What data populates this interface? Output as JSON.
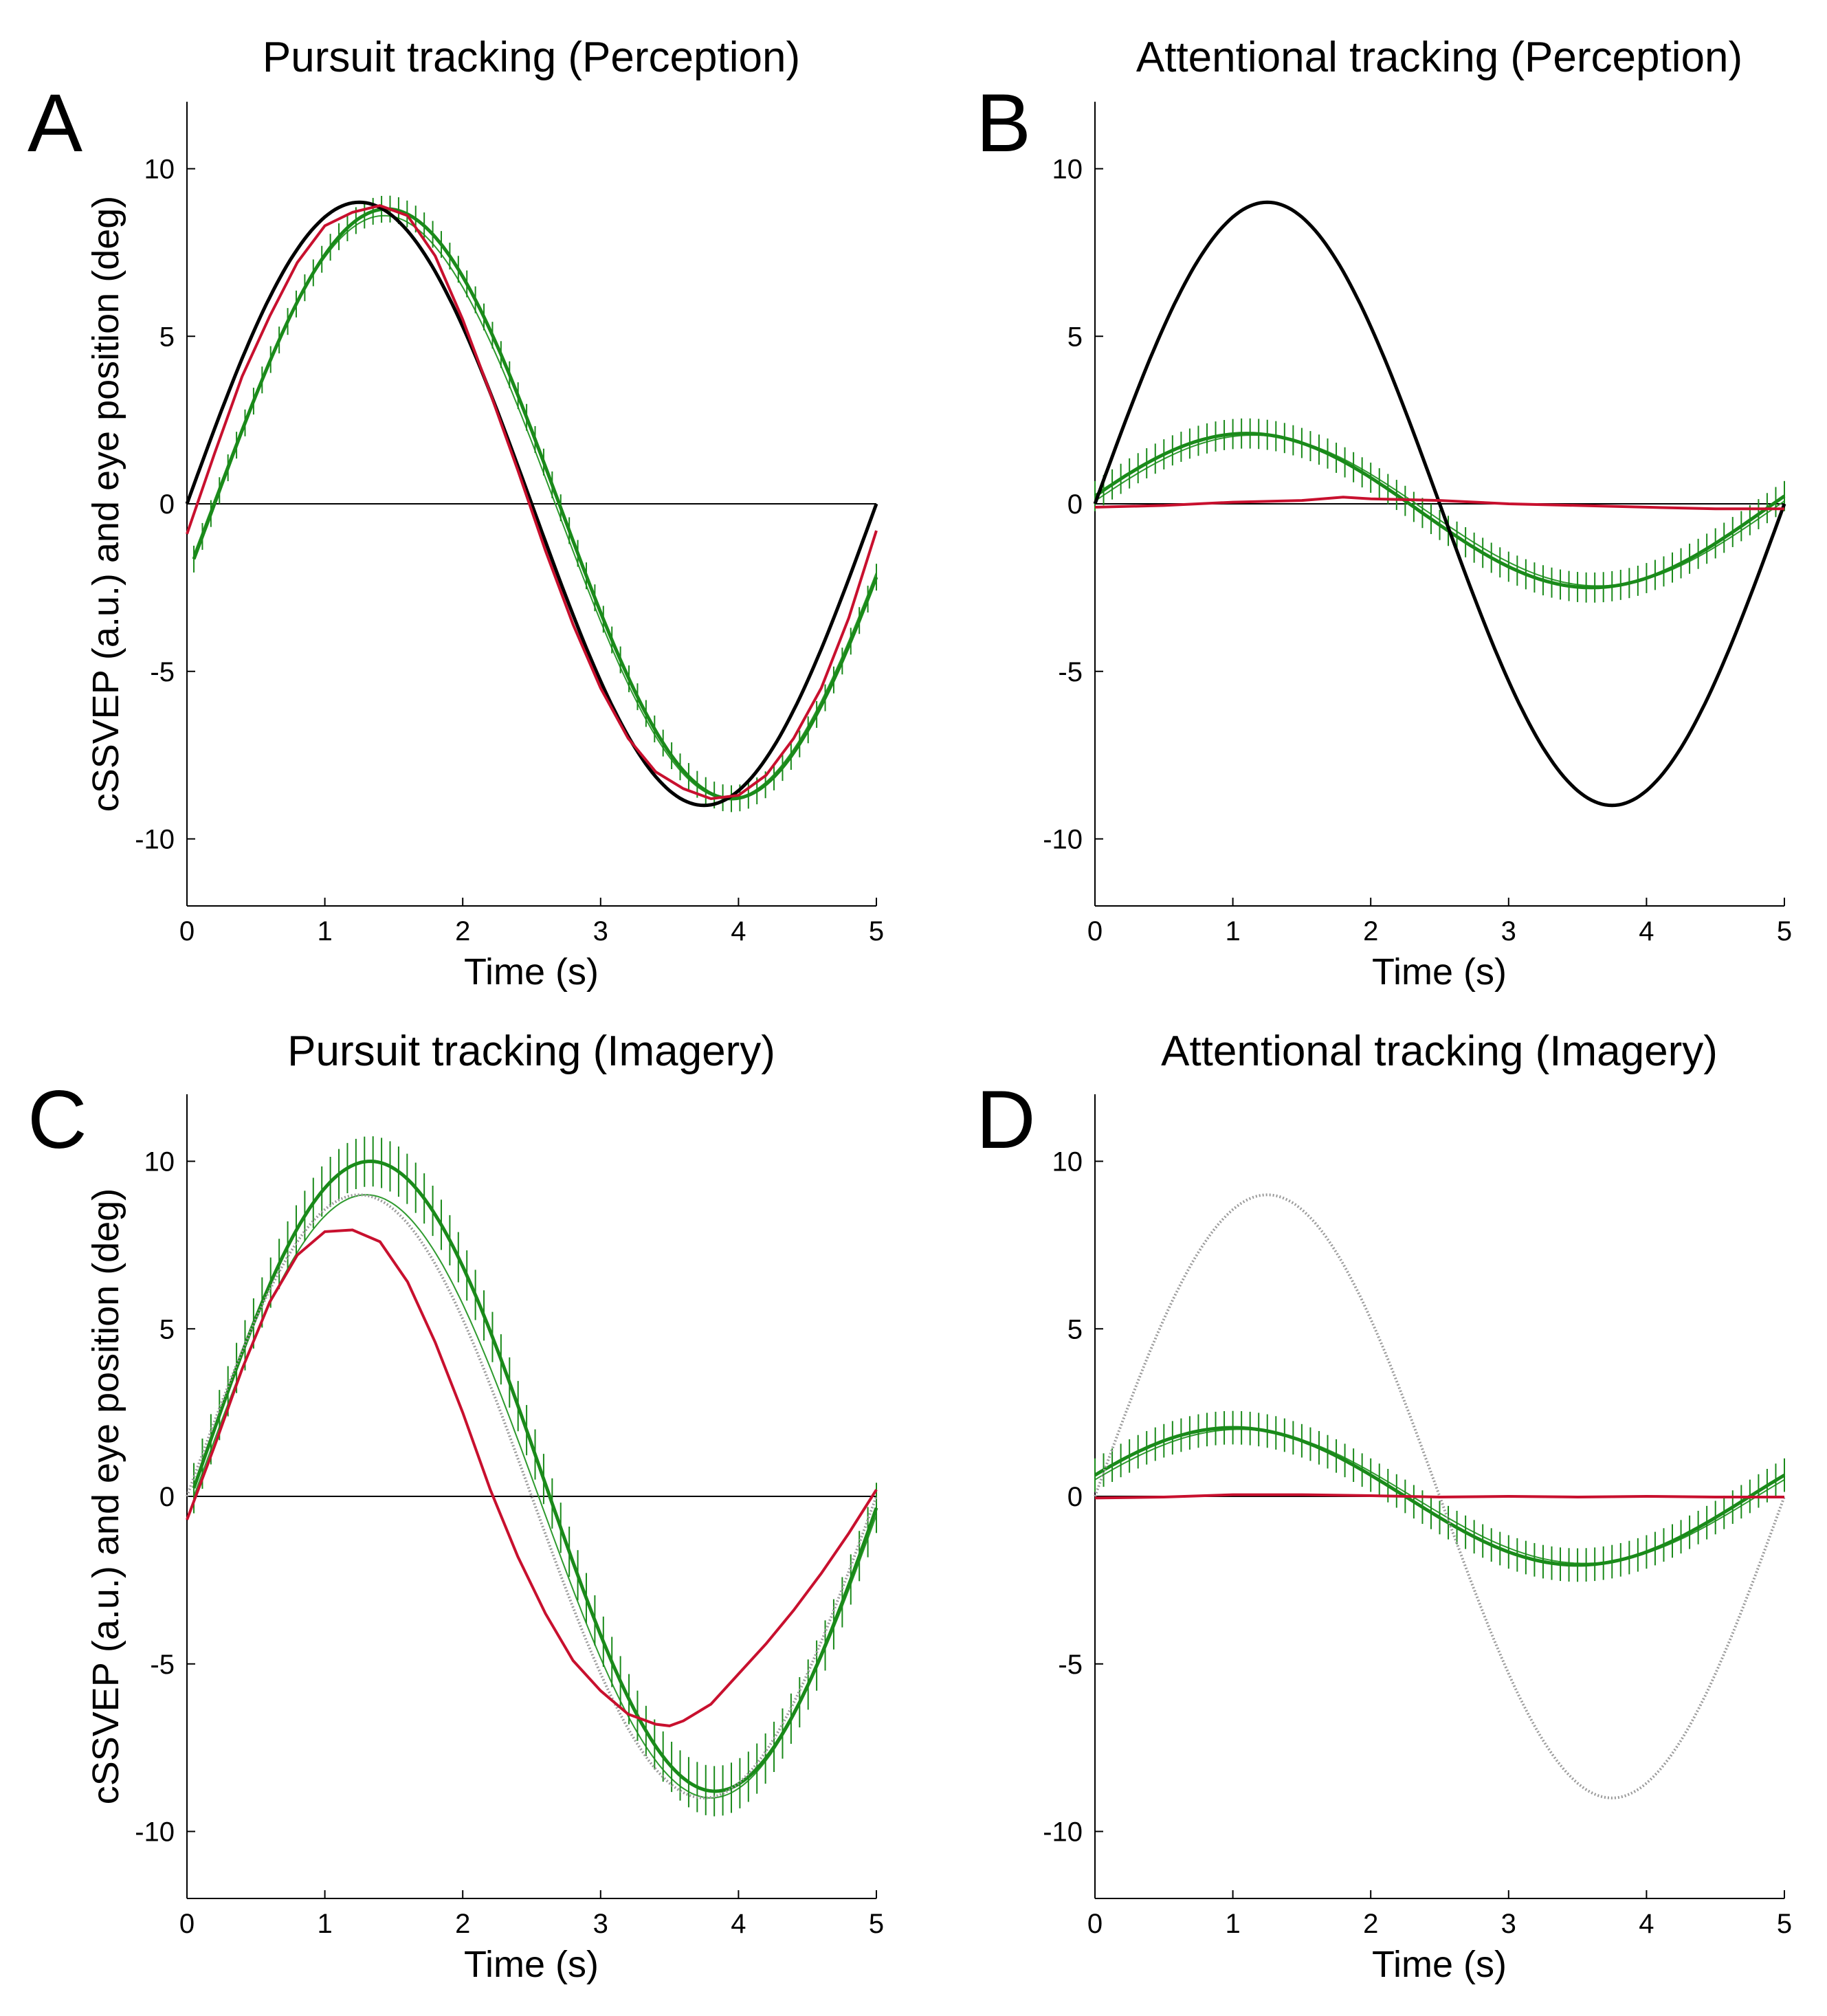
{
  "colors": {
    "target": "#000000",
    "target_dotted": "#9a9a9a",
    "eye": "#c8102e",
    "cssvep": "#1a8a1a",
    "fit": "#2e9a2e",
    "zero_line": "#000000"
  },
  "chart_data": [
    {
      "type": "line",
      "letter": "A",
      "title": "Pursuit tracking (Perception)",
      "xlabel": "Time (s)",
      "ylabel": "cSSVEP (a.u.) and eye position (deg)",
      "xlim": [
        0,
        5
      ],
      "ylim": [
        -12,
        12
      ],
      "x_ticks": [
        0,
        1,
        2,
        3,
        4,
        5
      ],
      "y_ticks": [
        -10,
        -5,
        0,
        5,
        10
      ],
      "grid": false,
      "series": [
        {
          "role": "target",
          "style": "solid",
          "amplitude": 9,
          "period": 5,
          "phase_shift": 0,
          "offset": 0,
          "x_start": 0,
          "x_end": 5
        },
        {
          "role": "eye",
          "style": "solid",
          "points": [
            [
              0,
              -0.9
            ],
            [
              0.2,
              1.5
            ],
            [
              0.4,
              3.8
            ],
            [
              0.6,
              5.6
            ],
            [
              0.8,
              7.2
            ],
            [
              1.0,
              8.3
            ],
            [
              1.2,
              8.7
            ],
            [
              1.4,
              8.9
            ],
            [
              1.6,
              8.6
            ],
            [
              1.8,
              7.4
            ],
            [
              2.0,
              5.5
            ],
            [
              2.2,
              3.3
            ],
            [
              2.4,
              1.0
            ],
            [
              2.6,
              -1.4
            ],
            [
              2.8,
              -3.6
            ],
            [
              3.0,
              -5.5
            ],
            [
              3.2,
              -7.0
            ],
            [
              3.4,
              -8.0
            ],
            [
              3.6,
              -8.5
            ],
            [
              3.8,
              -8.8
            ],
            [
              4.0,
              -8.7
            ],
            [
              4.2,
              -8.1
            ],
            [
              4.4,
              -7.0
            ],
            [
              4.6,
              -5.5
            ],
            [
              4.8,
              -3.4
            ],
            [
              5.0,
              -0.8
            ]
          ]
        },
        {
          "role": "cssvep",
          "style": "solid",
          "amplitude": 8.8,
          "period": 5,
          "phase_shift": 0.2,
          "offset": 0,
          "x_start": 0.05,
          "x_end": 5,
          "error": 0.4
        },
        {
          "role": "fit",
          "style": "solid",
          "amplitude": 8.7,
          "period": 5,
          "phase_shift": 0.18,
          "offset": -0.1,
          "x_start": 0.05,
          "x_end": 5
        }
      ]
    },
    {
      "type": "line",
      "letter": "B",
      "title": "Attentional tracking (Perception)",
      "xlabel": "Time (s)",
      "ylabel": "",
      "xlim": [
        0,
        5
      ],
      "ylim": [
        -12,
        12
      ],
      "x_ticks": [
        0,
        1,
        2,
        3,
        4,
        5
      ],
      "y_ticks": [
        -10,
        -5,
        0,
        5,
        10
      ],
      "grid": false,
      "series": [
        {
          "role": "target",
          "style": "solid",
          "amplitude": 9,
          "period": 5,
          "phase_shift": 0,
          "offset": 0,
          "x_start": 0,
          "x_end": 5
        },
        {
          "role": "eye",
          "style": "solid",
          "points": [
            [
              0,
              -0.1
            ],
            [
              0.5,
              -0.05
            ],
            [
              1.0,
              0.05
            ],
            [
              1.5,
              0.1
            ],
            [
              1.8,
              0.2
            ],
            [
              2.0,
              0.15
            ],
            [
              2.5,
              0.1
            ],
            [
              3.0,
              0.0
            ],
            [
              3.5,
              -0.05
            ],
            [
              4.0,
              -0.1
            ],
            [
              4.5,
              -0.15
            ],
            [
              5.0,
              -0.15
            ]
          ]
        },
        {
          "role": "cssvep",
          "style": "solid",
          "amplitude": 2.3,
          "period": 5,
          "phase_shift": -0.15,
          "offset": -0.2,
          "x_start": 0,
          "x_end": 5,
          "error": 0.45
        },
        {
          "role": "fit",
          "style": "solid",
          "amplitude": 2.25,
          "period": 5,
          "phase_shift": -0.1,
          "offset": -0.2,
          "x_start": 0,
          "x_end": 5
        }
      ]
    },
    {
      "type": "line",
      "letter": "C",
      "title": "Pursuit tracking (Imagery)",
      "xlabel": "Time (s)",
      "ylabel": "cSSVEP (a.u.) and eye position (deg)",
      "xlim": [
        0,
        5
      ],
      "ylim": [
        -12,
        12
      ],
      "x_ticks": [
        0,
        1,
        2,
        3,
        4,
        5
      ],
      "y_ticks": [
        -10,
        -5,
        0,
        5,
        10
      ],
      "grid": false,
      "series": [
        {
          "role": "target",
          "style": "dotted",
          "amplitude": 9,
          "period": 5,
          "phase_shift": 0,
          "offset": 0,
          "x_start": 0,
          "x_end": 5
        },
        {
          "role": "eye",
          "style": "solid",
          "points": [
            [
              0,
              -0.7
            ],
            [
              0.2,
              1.5
            ],
            [
              0.4,
              3.8
            ],
            [
              0.6,
              5.8
            ],
            [
              0.8,
              7.2
            ],
            [
              1.0,
              7.9
            ],
            [
              1.2,
              7.95
            ],
            [
              1.4,
              7.6
            ],
            [
              1.6,
              6.4
            ],
            [
              1.8,
              4.6
            ],
            [
              2.0,
              2.5
            ],
            [
              2.2,
              0.2
            ],
            [
              2.4,
              -1.8
            ],
            [
              2.6,
              -3.5
            ],
            [
              2.8,
              -4.9
            ],
            [
              3.0,
              -5.8
            ],
            [
              3.2,
              -6.5
            ],
            [
              3.4,
              -6.8
            ],
            [
              3.5,
              -6.85
            ],
            [
              3.6,
              -6.7
            ],
            [
              3.8,
              -6.2
            ],
            [
              4.0,
              -5.3
            ],
            [
              4.2,
              -4.4
            ],
            [
              4.4,
              -3.4
            ],
            [
              4.6,
              -2.3
            ],
            [
              4.8,
              -1.1
            ],
            [
              5.0,
              0.2
            ]
          ]
        },
        {
          "role": "cssvep",
          "style": "solid",
          "amplitude": 9.4,
          "period": 5,
          "phase_shift": 0.08,
          "offset": 0.6,
          "x_start": 0.05,
          "x_end": 5,
          "error": 0.75
        },
        {
          "role": "fit",
          "style": "solid",
          "amplitude": 9.0,
          "period": 5,
          "phase_shift": 0.05,
          "offset": 0,
          "x_start": 0.05,
          "x_end": 5
        }
      ]
    },
    {
      "type": "line",
      "letter": "D",
      "title": "Attentional tracking (Imagery)",
      "xlabel": "Time (s)",
      "ylabel": "",
      "xlim": [
        0,
        5
      ],
      "ylim": [
        -12,
        12
      ],
      "x_ticks": [
        0,
        1,
        2,
        3,
        4,
        5
      ],
      "y_ticks": [
        -10,
        -5,
        0,
        5,
        10
      ],
      "grid": false,
      "series": [
        {
          "role": "target",
          "style": "dotted",
          "amplitude": 9,
          "period": 5,
          "phase_shift": 0,
          "offset": 0,
          "x_start": 0,
          "x_end": 5
        },
        {
          "role": "eye",
          "style": "solid",
          "points": [
            [
              0,
              -0.05
            ],
            [
              0.5,
              -0.02
            ],
            [
              1.0,
              0.05
            ],
            [
              1.5,
              0.05
            ],
            [
              2.0,
              0.02
            ],
            [
              2.5,
              -0.02
            ],
            [
              3.0,
              0.0
            ],
            [
              3.5,
              -0.02
            ],
            [
              4.0,
              0.0
            ],
            [
              4.5,
              -0.02
            ],
            [
              5.0,
              -0.02
            ]
          ]
        },
        {
          "role": "cssvep",
          "style": "solid",
          "amplitude": 2.05,
          "period": 5,
          "phase_shift": -0.25,
          "offset": 0,
          "x_start": 0,
          "x_end": 5,
          "error": 0.5
        },
        {
          "role": "fit",
          "style": "solid",
          "amplitude": 2.0,
          "period": 5,
          "phase_shift": -0.2,
          "offset": 0,
          "x_start": 0,
          "x_end": 5
        }
      ]
    }
  ]
}
